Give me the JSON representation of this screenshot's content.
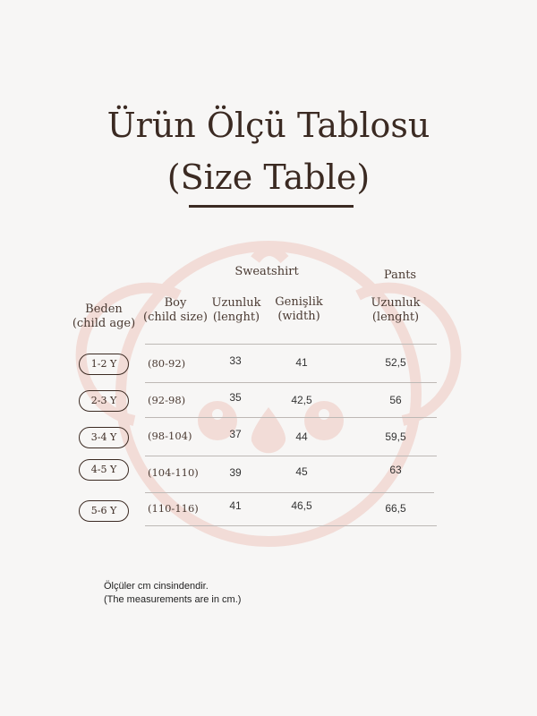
{
  "title": {
    "line1": "Ürün Ölçü Tablosu",
    "line2": "(Size Table)"
  },
  "watermark": {
    "icon": "koala-face-icon",
    "color": "#f2dcd7"
  },
  "table": {
    "group_headers": {
      "sweatshirt": "Sweatshirt",
      "pants": "Pants"
    },
    "columns": [
      {
        "line1": "Beden",
        "line2": "(child age)"
      },
      {
        "line1": "Boy",
        "line2": "(child size)"
      },
      {
        "line1": "Uzunluk",
        "line2": "(lenght)"
      },
      {
        "line1": "Genişlik",
        "line2": "(width)"
      },
      {
        "line1": "Uzunluk",
        "line2": "(lenght)"
      }
    ],
    "rows": [
      {
        "age": "1-2 Y",
        "size": "(80-92)",
        "sw_length": "33",
        "sw_width": "41",
        "pants_length": "52,5"
      },
      {
        "age": "2-3 Y",
        "size": "(92-98)",
        "sw_length": "35",
        "sw_width": "42,5",
        "pants_length": "56"
      },
      {
        "age": "3-4 Y",
        "size": "(98-104)",
        "sw_length": "37",
        "sw_width": "44",
        "pants_length": "59,5"
      },
      {
        "age": "4-5 Y",
        "size": "(104-110)",
        "sw_length": "39",
        "sw_width": "45",
        "pants_length": "63"
      },
      {
        "age": "5-6 Y",
        "size": "(110-116)",
        "sw_length": "41",
        "sw_width": "46,5",
        "pants_length": "66,5"
      }
    ]
  },
  "notes": {
    "line1": "Ölçüler cm cinsindendir.",
    "line2": "(The measurements are in cm.)"
  },
  "colors": {
    "text": "#3b2a22",
    "background": "#f7f6f5"
  }
}
